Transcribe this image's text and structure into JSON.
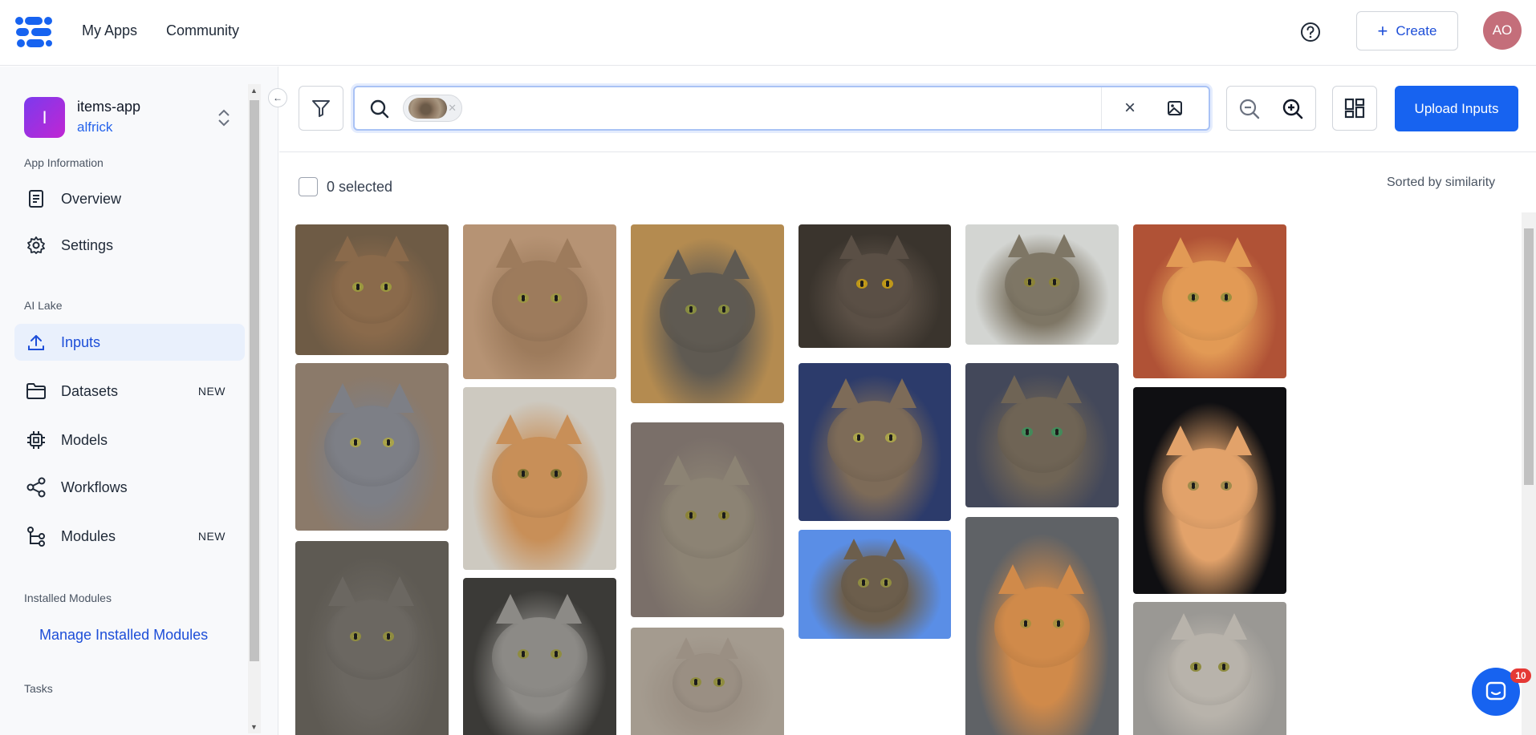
{
  "header": {
    "nav": [
      {
        "label": "My Apps"
      },
      {
        "label": "Community"
      }
    ],
    "create_label": "Create",
    "avatar_initials": "AO"
  },
  "app": {
    "badge_letter": "I",
    "name": "items-app",
    "user": "alfrick"
  },
  "sidebar": {
    "section_app_info": "App Information",
    "overview": "Overview",
    "settings": "Settings",
    "section_ai_lake": "AI Lake",
    "inputs": "Inputs",
    "datasets": "Datasets",
    "datasets_tag": "NEW",
    "models": "Models",
    "workflows": "Workflows",
    "modules": "Modules",
    "modules_tag": "NEW",
    "section_installed": "Installed Modules",
    "manage_link": "Manage Installed Modules",
    "section_tasks": "Tasks"
  },
  "toolbar": {
    "search_value": "",
    "upload_label": "Upload Inputs"
  },
  "selection": {
    "count_label": "0 selected",
    "sort_label": "Sorted by similarity"
  },
  "chat": {
    "badge": "10"
  },
  "colors": {
    "accent": "#1763f0",
    "link": "#1d4ed8",
    "active_bg": "#e9f0fc"
  },
  "gallery_items": [
    "cat-1",
    "cat-2",
    "cat-3",
    "cat-4",
    "cat-5",
    "cat-6",
    "cat-7",
    "cat-8",
    "cat-9",
    "cat-10",
    "cat-11",
    "cat-12",
    "cat-13",
    "cat-14",
    "cat-15",
    "cat-16",
    "cat-17",
    "cat-18",
    "cat-19",
    "cat-20"
  ]
}
